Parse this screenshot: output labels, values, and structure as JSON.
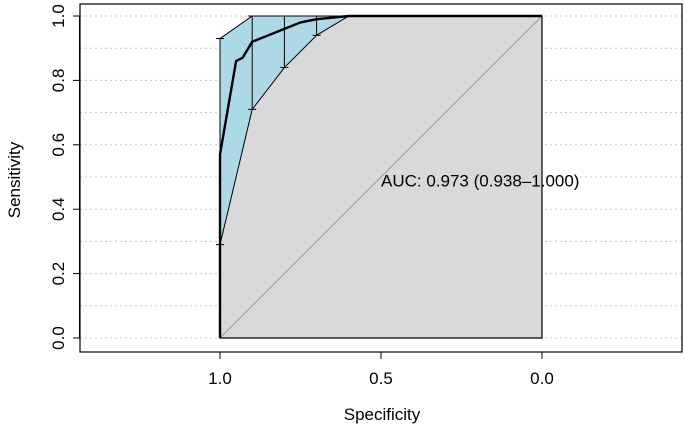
{
  "chart_data": {
    "type": "line",
    "title": "",
    "xlabel": "Specificity",
    "ylabel": "Sensitivity",
    "x_reversed": true,
    "xlim": [
      1.5,
      -0.5
    ],
    "ylim": [
      -0.05,
      1.03
    ],
    "x_ticks": [
      {
        "value": 1.0,
        "label": "1.0"
      },
      {
        "value": 0.5,
        "label": "0.5"
      },
      {
        "value": 0.0,
        "label": "0.0"
      }
    ],
    "y_ticks": [
      {
        "value": 0.0,
        "label": "0.0"
      },
      {
        "value": 0.2,
        "label": "0.2"
      },
      {
        "value": 0.4,
        "label": "0.4"
      },
      {
        "value": 0.6,
        "label": "0.6"
      },
      {
        "value": 0.8,
        "label": "0.8"
      },
      {
        "value": 1.0,
        "label": "1.0"
      }
    ],
    "y_grid": [
      0,
      0.1,
      0.2,
      0.3,
      0.4,
      0.5,
      0.6,
      0.7,
      0.8,
      0.9,
      1.0
    ],
    "grid": true,
    "roc_curve": [
      [
        1.0,
        0.0
      ],
      [
        1.0,
        0.57
      ],
      [
        0.95,
        0.86
      ],
      [
        0.93,
        0.87
      ],
      [
        0.9,
        0.92
      ],
      [
        0.85,
        0.94
      ],
      [
        0.8,
        0.96
      ],
      [
        0.75,
        0.98
      ],
      [
        0.7,
        0.99
      ],
      [
        0.6,
        1.0
      ],
      [
        0.55,
        1.0
      ],
      [
        0.0,
        1.0
      ]
    ],
    "ci_upper": [
      [
        1.0,
        0.93
      ],
      [
        0.9,
        1.0
      ],
      [
        0.0,
        1.0
      ]
    ],
    "ci_lower": [
      [
        1.0,
        0.29
      ],
      [
        0.9,
        0.71
      ],
      [
        0.8,
        0.84
      ],
      [
        0.7,
        0.94
      ],
      [
        0.6,
        1.0
      ],
      [
        0.0,
        1.0
      ]
    ],
    "ci_bars": [
      {
        "sp": 1.0,
        "lo": 0.29,
        "hi": 0.93
      },
      {
        "sp": 0.9,
        "lo": 0.71,
        "hi": 1.0
      },
      {
        "sp": 0.8,
        "lo": 0.84,
        "hi": 1.0
      },
      {
        "sp": 0.7,
        "lo": 0.94,
        "hi": 1.0
      }
    ],
    "diagonal": [
      [
        1.0,
        0.0
      ],
      [
        0.0,
        1.0
      ]
    ],
    "auc_label": "AUC: 0.973 (0.938–1.000)",
    "auc_label_pos": {
      "sp": 0.5,
      "se": 0.47
    },
    "colors": {
      "ci_fill": "#add8e6",
      "auc_fill": "#d9d9d9",
      "grid": "#c8c8c8",
      "diagonal": "#9a9a9a",
      "curve": "#000000"
    }
  }
}
